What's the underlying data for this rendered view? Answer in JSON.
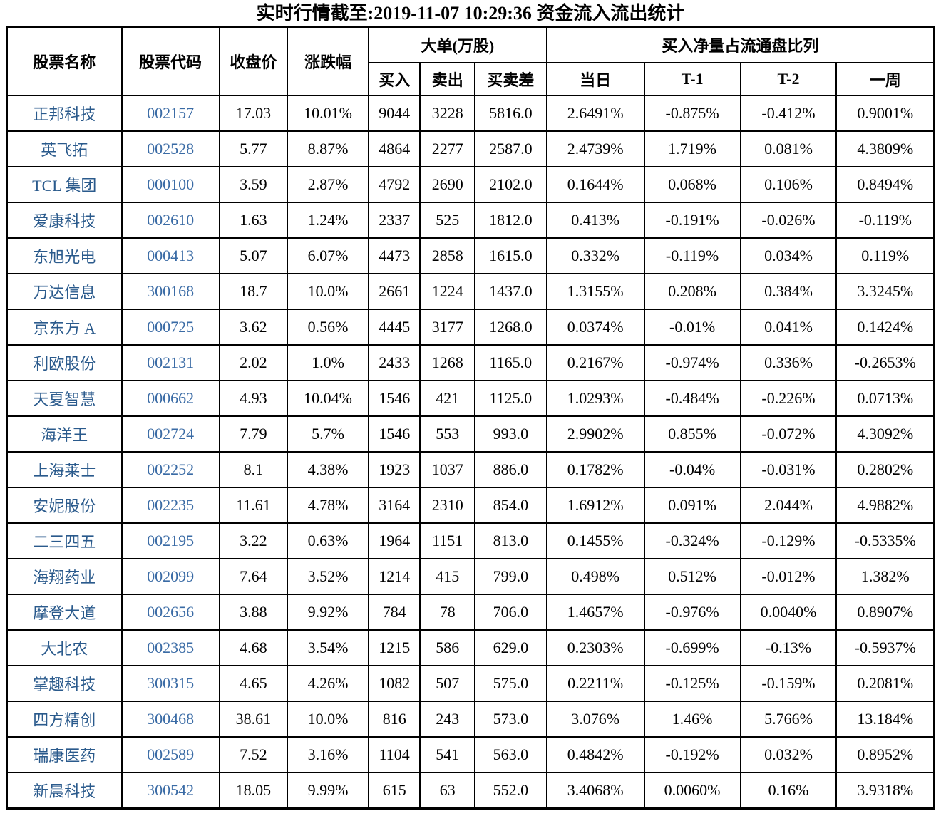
{
  "title": "实时行情截至:2019-11-07 10:29:36 资金流入流出统计",
  "colors": {
    "stock_name": "#2A5A8C",
    "stock_code": "#3A6BA5",
    "text": "#000000",
    "border": "#000000",
    "background": "#ffffff"
  },
  "table": {
    "headers": {
      "name": "股票名称",
      "code": "股票代码",
      "close": "收盘价",
      "change": "涨跌幅",
      "big_order_group": "大单(万股)",
      "buy": "买入",
      "sell": "卖出",
      "diff": "买卖差",
      "net_ratio_group": "买入净量占流通盘比列",
      "today": "当日",
      "t1": "T-1",
      "t2": "T-2",
      "week": "一周"
    },
    "rows": [
      [
        "正邦科技",
        "002157",
        "17.03",
        "10.01%",
        "9044",
        "3228",
        "5816.0",
        "2.6491%",
        "-0.875%",
        "-0.412%",
        "0.9001%"
      ],
      [
        "英飞拓",
        "002528",
        "5.77",
        "8.87%",
        "4864",
        "2277",
        "2587.0",
        "2.4739%",
        "1.719%",
        "0.081%",
        "4.3809%"
      ],
      [
        "TCL 集团",
        "000100",
        "3.59",
        "2.87%",
        "4792",
        "2690",
        "2102.0",
        "0.1644%",
        "0.068%",
        "0.106%",
        "0.8494%"
      ],
      [
        "爱康科技",
        "002610",
        "1.63",
        "1.24%",
        "2337",
        "525",
        "1812.0",
        "0.413%",
        "-0.191%",
        "-0.026%",
        "-0.119%"
      ],
      [
        "东旭光电",
        "000413",
        "5.07",
        "6.07%",
        "4473",
        "2858",
        "1615.0",
        "0.332%",
        "-0.119%",
        "0.034%",
        "0.119%"
      ],
      [
        "万达信息",
        "300168",
        "18.7",
        "10.0%",
        "2661",
        "1224",
        "1437.0",
        "1.3155%",
        "0.208%",
        "0.384%",
        "3.3245%"
      ],
      [
        "京东方 A",
        "000725",
        "3.62",
        "0.56%",
        "4445",
        "3177",
        "1268.0",
        "0.0374%",
        "-0.01%",
        "0.041%",
        "0.1424%"
      ],
      [
        "利欧股份",
        "002131",
        "2.02",
        "1.0%",
        "2433",
        "1268",
        "1165.0",
        "0.2167%",
        "-0.974%",
        "0.336%",
        "-0.2653%"
      ],
      [
        "天夏智慧",
        "000662",
        "4.93",
        "10.04%",
        "1546",
        "421",
        "1125.0",
        "1.0293%",
        "-0.484%",
        "-0.226%",
        "0.0713%"
      ],
      [
        "海洋王",
        "002724",
        "7.79",
        "5.7%",
        "1546",
        "553",
        "993.0",
        "2.9902%",
        "0.855%",
        "-0.072%",
        "4.3092%"
      ],
      [
        "上海莱士",
        "002252",
        "8.1",
        "4.38%",
        "1923",
        "1037",
        "886.0",
        "0.1782%",
        "-0.04%",
        "-0.031%",
        "0.2802%"
      ],
      [
        "安妮股份",
        "002235",
        "11.61",
        "4.78%",
        "3164",
        "2310",
        "854.0",
        "1.6912%",
        "0.091%",
        "2.044%",
        "4.9882%"
      ],
      [
        "二三四五",
        "002195",
        "3.22",
        "0.63%",
        "1964",
        "1151",
        "813.0",
        "0.1455%",
        "-0.324%",
        "-0.129%",
        "-0.5335%"
      ],
      [
        "海翔药业",
        "002099",
        "7.64",
        "3.52%",
        "1214",
        "415",
        "799.0",
        "0.498%",
        "0.512%",
        "-0.012%",
        "1.382%"
      ],
      [
        "摩登大道",
        "002656",
        "3.88",
        "9.92%",
        "784",
        "78",
        "706.0",
        "1.4657%",
        "-0.976%",
        "0.0040%",
        "0.8907%"
      ],
      [
        "大北农",
        "002385",
        "4.68",
        "3.54%",
        "1215",
        "586",
        "629.0",
        "0.2303%",
        "-0.699%",
        "-0.13%",
        "-0.5937%"
      ],
      [
        "掌趣科技",
        "300315",
        "4.65",
        "4.26%",
        "1082",
        "507",
        "575.0",
        "0.2211%",
        "-0.125%",
        "-0.159%",
        "0.2081%"
      ],
      [
        "四方精创",
        "300468",
        "38.61",
        "10.0%",
        "816",
        "243",
        "573.0",
        "3.076%",
        "1.46%",
        "5.766%",
        "13.184%"
      ],
      [
        "瑞康医药",
        "002589",
        "7.52",
        "3.16%",
        "1104",
        "541",
        "563.0",
        "0.4842%",
        "-0.192%",
        "0.032%",
        "0.8952%"
      ],
      [
        "新晨科技",
        "300542",
        "18.05",
        "9.99%",
        "615",
        "63",
        "552.0",
        "3.4068%",
        "0.0060%",
        "0.16%",
        "3.9318%"
      ]
    ]
  }
}
